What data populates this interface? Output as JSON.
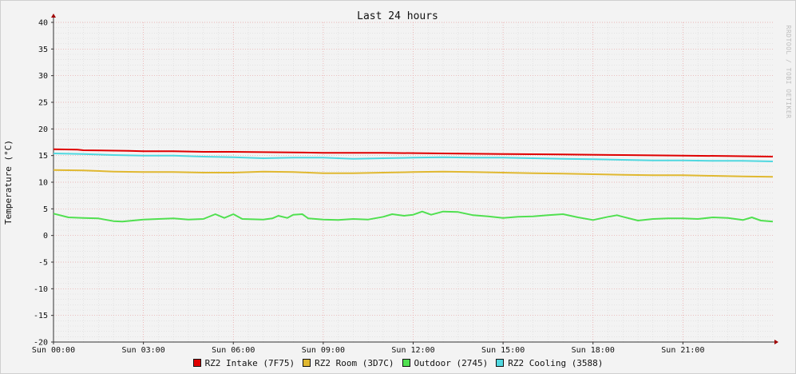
{
  "chart_data": {
    "type": "line",
    "title": "Last 24 hours",
    "ylabel": "Temperature (°C)",
    "xlabel": "",
    "vendor_text": "RRDTOOL / TOBI OETIKER",
    "ylim": [
      -20,
      40
    ],
    "y_ticks": [
      40,
      35,
      30,
      25,
      20,
      15,
      10,
      5,
      0,
      -5,
      -10,
      -15,
      -20
    ],
    "x_range_hours": [
      0,
      24
    ],
    "x_ticks": [
      {
        "hour": 0,
        "label": "Sun 00:00"
      },
      {
        "hour": 3,
        "label": "Sun 03:00"
      },
      {
        "hour": 6,
        "label": "Sun 06:00"
      },
      {
        "hour": 9,
        "label": "Sun 09:00"
      },
      {
        "hour": 12,
        "label": "Sun 12:00"
      },
      {
        "hour": 15,
        "label": "Sun 15:00"
      },
      {
        "hour": 18,
        "label": "Sun 18:00"
      },
      {
        "hour": 21,
        "label": "Sun 21:00"
      }
    ],
    "grid": true,
    "legend_position": "bottom",
    "series": [
      {
        "name": "RZ2 Intake (7F75)",
        "color": "#e00000",
        "points": [
          [
            0,
            16.2
          ],
          [
            0.8,
            16.1
          ],
          [
            1,
            16.0
          ],
          [
            2.5,
            15.9
          ],
          [
            3,
            15.8
          ],
          [
            4,
            15.8
          ],
          [
            5,
            15.7
          ],
          [
            6,
            15.7
          ],
          [
            8,
            15.6
          ],
          [
            9,
            15.5
          ],
          [
            11,
            15.5
          ],
          [
            13,
            15.4
          ],
          [
            15,
            15.3
          ],
          [
            17,
            15.2
          ],
          [
            19,
            15.1
          ],
          [
            21,
            15.0
          ],
          [
            22.5,
            14.9
          ],
          [
            24,
            14.8
          ]
        ]
      },
      {
        "name": "RZ2 Room (3D7C)",
        "color": "#e0b830",
        "points": [
          [
            0,
            12.3
          ],
          [
            1,
            12.2
          ],
          [
            2,
            12.0
          ],
          [
            3,
            11.9
          ],
          [
            4,
            11.9
          ],
          [
            5,
            11.8
          ],
          [
            6,
            11.8
          ],
          [
            7,
            12.0
          ],
          [
            8,
            11.9
          ],
          [
            8.5,
            11.8
          ],
          [
            9,
            11.7
          ],
          [
            10,
            11.7
          ],
          [
            11,
            11.8
          ],
          [
            12,
            11.9
          ],
          [
            13,
            12.0
          ],
          [
            14,
            11.9
          ],
          [
            15,
            11.8
          ],
          [
            16,
            11.7
          ],
          [
            17,
            11.6
          ],
          [
            18,
            11.5
          ],
          [
            19,
            11.4
          ],
          [
            20,
            11.3
          ],
          [
            21,
            11.3
          ],
          [
            22,
            11.2
          ],
          [
            23,
            11.1
          ],
          [
            24,
            11.0
          ]
        ]
      },
      {
        "name": "Outdoor (2745)",
        "color": "#50e050",
        "points": [
          [
            0,
            4.1
          ],
          [
            0.5,
            3.4
          ],
          [
            1,
            3.3
          ],
          [
            1.5,
            3.2
          ],
          [
            2,
            2.7
          ],
          [
            2.3,
            2.6
          ],
          [
            3,
            3.0
          ],
          [
            4,
            3.2
          ],
          [
            4.5,
            3.0
          ],
          [
            5,
            3.1
          ],
          [
            5.4,
            4.0
          ],
          [
            5.7,
            3.3
          ],
          [
            6,
            4.0
          ],
          [
            6.3,
            3.1
          ],
          [
            7,
            3.0
          ],
          [
            7.3,
            3.2
          ],
          [
            7.5,
            3.7
          ],
          [
            7.8,
            3.3
          ],
          [
            8,
            3.9
          ],
          [
            8.3,
            4.0
          ],
          [
            8.5,
            3.2
          ],
          [
            9,
            3.0
          ],
          [
            9.5,
            2.9
          ],
          [
            10,
            3.1
          ],
          [
            10.5,
            3.0
          ],
          [
            11,
            3.5
          ],
          [
            11.3,
            4.0
          ],
          [
            11.7,
            3.7
          ],
          [
            12,
            3.9
          ],
          [
            12.3,
            4.5
          ],
          [
            12.6,
            3.9
          ],
          [
            13,
            4.5
          ],
          [
            13.5,
            4.4
          ],
          [
            14,
            3.8
          ],
          [
            14.5,
            3.6
          ],
          [
            15,
            3.3
          ],
          [
            15.5,
            3.5
          ],
          [
            16,
            3.6
          ],
          [
            16.5,
            3.8
          ],
          [
            17,
            4.0
          ],
          [
            17.5,
            3.4
          ],
          [
            18,
            2.9
          ],
          [
            18.5,
            3.5
          ],
          [
            18.8,
            3.8
          ],
          [
            19,
            3.5
          ],
          [
            19.5,
            2.8
          ],
          [
            20,
            3.1
          ],
          [
            20.5,
            3.2
          ],
          [
            21,
            3.2
          ],
          [
            21.5,
            3.1
          ],
          [
            22,
            3.4
          ],
          [
            22.5,
            3.3
          ],
          [
            23,
            2.9
          ],
          [
            23.3,
            3.4
          ],
          [
            23.6,
            2.8
          ],
          [
            24,
            2.6
          ]
        ]
      },
      {
        "name": "RZ2 Cooling (3588)",
        "color": "#50d8e0",
        "points": [
          [
            0,
            15.4
          ],
          [
            1,
            15.3
          ],
          [
            2,
            15.1
          ],
          [
            3,
            15.0
          ],
          [
            4,
            15.0
          ],
          [
            5,
            14.8
          ],
          [
            6,
            14.7
          ],
          [
            7,
            14.5
          ],
          [
            8,
            14.6
          ],
          [
            9,
            14.6
          ],
          [
            10,
            14.4
          ],
          [
            11,
            14.5
          ],
          [
            12,
            14.6
          ],
          [
            13,
            14.7
          ],
          [
            14,
            14.6
          ],
          [
            15,
            14.6
          ],
          [
            16,
            14.5
          ],
          [
            17,
            14.4
          ],
          [
            18,
            14.3
          ],
          [
            19,
            14.2
          ],
          [
            20,
            14.1
          ],
          [
            21,
            14.1
          ],
          [
            22,
            14.0
          ],
          [
            23,
            14.0
          ],
          [
            24,
            13.9
          ]
        ]
      }
    ]
  }
}
